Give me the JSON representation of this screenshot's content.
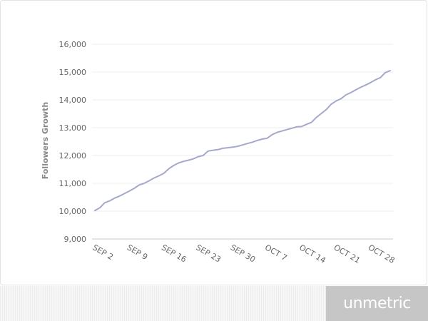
{
  "chart_data": {
    "type": "line",
    "title": "",
    "xlabel": "",
    "ylabel": "Followers Growth",
    "ylim": [
      9000,
      16000
    ],
    "yticks": [
      9000,
      10000,
      11000,
      12000,
      13000,
      14000,
      15000,
      16000
    ],
    "ytick_labels": [
      "9,000",
      "10,000",
      "11,000",
      "12,000",
      "13,000",
      "14,000",
      "15,000",
      "16,000"
    ],
    "xticks": [
      "2024-09-02",
      "2024-09-09",
      "2024-09-16",
      "2024-09-23",
      "2024-09-30",
      "2024-10-07",
      "2024-10-14",
      "2024-10-21",
      "2024-10-28"
    ],
    "xtick_labels": [
      "SEP 2",
      "SEP 9",
      "SEP 16",
      "SEP 23",
      "SEP 30",
      "OCT 7",
      "OCT 14",
      "OCT 21",
      "OCT 28"
    ],
    "xlim": [
      "2024-09-02",
      "2024-11-01"
    ],
    "grid": true,
    "line_color": "#a5a8cc",
    "series": [
      {
        "name": "",
        "x": [
          "2024-09-02",
          "2024-09-03",
          "2024-09-04",
          "2024-09-05",
          "2024-09-06",
          "2024-09-07",
          "2024-09-08",
          "2024-09-09",
          "2024-09-10",
          "2024-09-11",
          "2024-09-12",
          "2024-09-13",
          "2024-09-14",
          "2024-09-15",
          "2024-09-16",
          "2024-09-17",
          "2024-09-18",
          "2024-09-19",
          "2024-09-20",
          "2024-09-21",
          "2024-09-22",
          "2024-09-23",
          "2024-09-24",
          "2024-09-25",
          "2024-09-26",
          "2024-09-27",
          "2024-09-28",
          "2024-09-29",
          "2024-09-30",
          "2024-10-01",
          "2024-10-02",
          "2024-10-03",
          "2024-10-04",
          "2024-10-05",
          "2024-10-06",
          "2024-10-07",
          "2024-10-08",
          "2024-10-09",
          "2024-10-10",
          "2024-10-11",
          "2024-10-12",
          "2024-10-13",
          "2024-10-14",
          "2024-10-15",
          "2024-10-16",
          "2024-10-17",
          "2024-10-18",
          "2024-10-19",
          "2024-10-20",
          "2024-10-21",
          "2024-10-22",
          "2024-10-23",
          "2024-10-24",
          "2024-10-25",
          "2024-10-26",
          "2024-10-27",
          "2024-10-28",
          "2024-10-29",
          "2024-10-30",
          "2024-10-31",
          "2024-11-01"
        ],
        "values": [
          10020,
          10120,
          10300,
          10370,
          10470,
          10540,
          10630,
          10720,
          10820,
          10940,
          11000,
          11090,
          11190,
          11270,
          11360,
          11520,
          11640,
          11730,
          11790,
          11830,
          11880,
          11960,
          12000,
          12160,
          12190,
          12210,
          12260,
          12280,
          12300,
          12330,
          12380,
          12430,
          12480,
          12540,
          12590,
          12620,
          12750,
          12830,
          12880,
          12930,
          12980,
          13030,
          13040,
          13120,
          13190,
          13370,
          13510,
          13650,
          13840,
          13960,
          14040,
          14180,
          14260,
          14360,
          14450,
          14530,
          14620,
          14720,
          14800,
          14980,
          15050
        ]
      }
    ]
  },
  "brand": {
    "name": "unmetric"
  }
}
